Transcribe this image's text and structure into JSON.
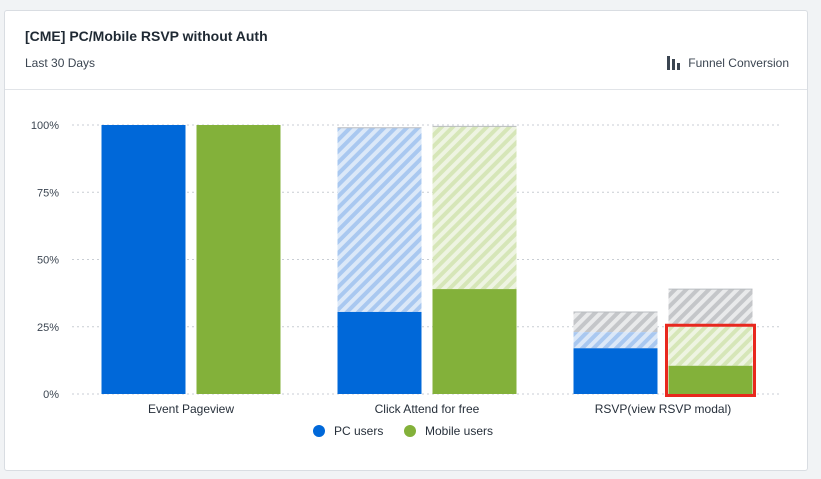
{
  "card": {
    "title": "[CME] PC/Mobile RSVP without Auth",
    "subtitle": "Last 30 Days",
    "view_toggle_label": "Funnel Conversion",
    "view_toggle_icon": "bar-chart-icon"
  },
  "colors": {
    "pc": "#0068d9",
    "pc_dropoff": "#a9c8f0",
    "mobile": "#83b13a",
    "mobile_dropoff": "#d6e6b8",
    "grey_dropoff": "#c4c6c9",
    "highlight": "#e8281e"
  },
  "chart_data": {
    "type": "bar",
    "title": "[CME] PC/Mobile RSVP without Auth",
    "xlabel": "",
    "ylabel": "",
    "ylim": [
      0,
      100
    ],
    "y_ticks": [
      "0%",
      "25%",
      "50%",
      "75%",
      "100%"
    ],
    "y_tick_values": [
      0,
      25,
      50,
      75,
      100
    ],
    "grid": true,
    "legend_position": "bottom",
    "categories": [
      "Event Pageview",
      "Click Attend for free",
      "RSVP(view RSVP modal)"
    ],
    "series": [
      {
        "name": "PC users",
        "values": [
          100,
          30.5,
          17
        ],
        "dropoff_top": [
          100,
          99,
          23
        ],
        "grey_top": [
          100,
          99,
          30.5
        ]
      },
      {
        "name": "Mobile users",
        "values": [
          100,
          39,
          10.5
        ],
        "dropoff_top": [
          100,
          99.5,
          25
        ],
        "grey_top": [
          100,
          99.5,
          39
        ]
      }
    ],
    "highlighted": {
      "series": "Mobile users",
      "category": "RSVP(view RSVP modal)"
    }
  }
}
